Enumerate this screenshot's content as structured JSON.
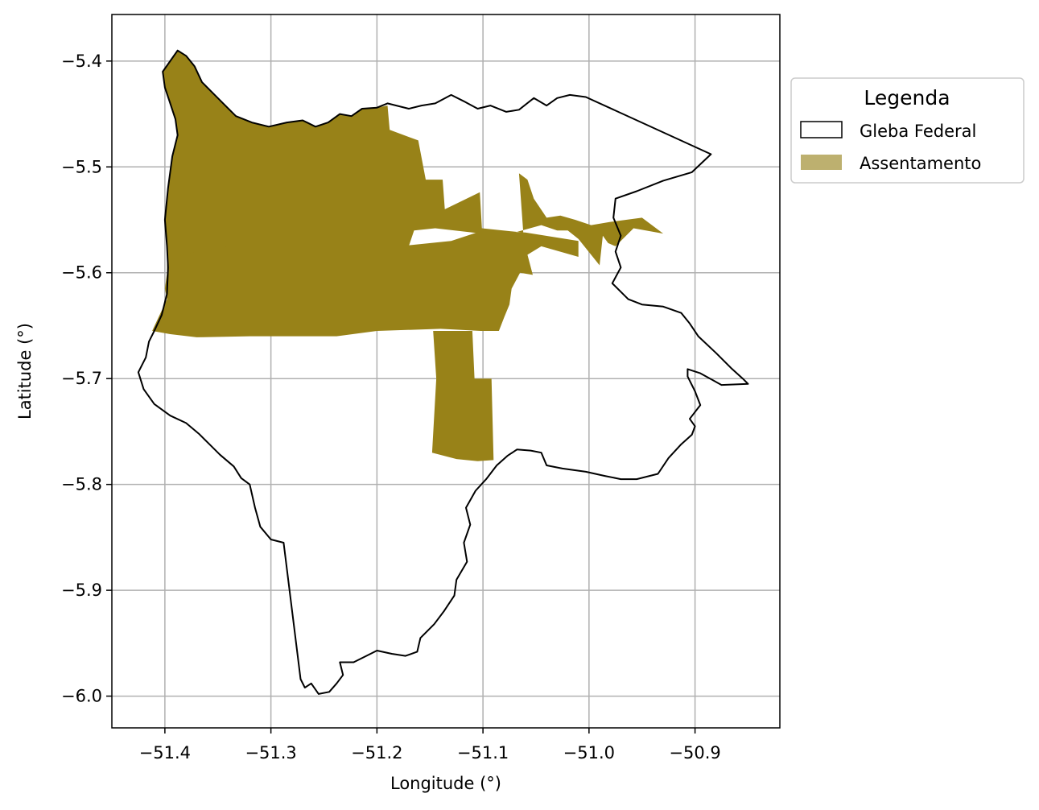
{
  "chart_data": {
    "type": "map",
    "xlabel": "Longitude (°)",
    "ylabel": "Latitude (°)",
    "xlim": [
      -51.45,
      -50.82
    ],
    "ylim": [
      -6.03,
      -5.356
    ],
    "xticks": [
      -51.4,
      -51.3,
      -51.2,
      -51.1,
      -51.0,
      -50.9
    ],
    "yticks": [
      -5.4,
      -5.5,
      -5.6,
      -5.7,
      -5.8,
      -5.9,
      -6.0
    ],
    "xtick_labels": [
      "−51.4",
      "−51.3",
      "−51.2",
      "−51.1",
      "−51.0",
      "−50.9"
    ],
    "ytick_labels": [
      "−5.4",
      "−5.5",
      "−5.6",
      "−5.7",
      "−5.8",
      "−5.9",
      "−6.0"
    ],
    "grid": true,
    "legend": {
      "title": "Legenda",
      "placement": "outside-right-top",
      "entries": [
        {
          "label": "Gleba Federal",
          "style": "outline",
          "color": "#000000"
        },
        {
          "label": "Assentamento",
          "style": "fill",
          "color": "#bdb06f"
        }
      ]
    },
    "colors": {
      "assentamento": "#988218",
      "gleba": "#000000",
      "grid": "#b0b0b0"
    },
    "gleba_federal": [
      [
        -51.402,
        -5.41
      ],
      [
        -51.388,
        -5.39
      ],
      [
        -51.38,
        -5.395
      ],
      [
        -51.372,
        -5.405
      ],
      [
        -51.365,
        -5.42
      ],
      [
        -51.355,
        -5.43
      ],
      [
        -51.345,
        -5.44
      ],
      [
        -51.333,
        -5.452
      ],
      [
        -51.318,
        -5.458
      ],
      [
        -51.302,
        -5.462
      ],
      [
        -51.285,
        -5.458
      ],
      [
        -51.27,
        -5.456
      ],
      [
        -51.258,
        -5.462
      ],
      [
        -51.246,
        -5.458
      ],
      [
        -51.235,
        -5.45
      ],
      [
        -51.224,
        -5.452
      ],
      [
        -51.214,
        -5.445
      ],
      [
        -51.2,
        -5.444
      ],
      [
        -51.19,
        -5.44
      ],
      [
        -51.17,
        -5.445
      ],
      [
        -51.158,
        -5.442
      ],
      [
        -51.145,
        -5.44
      ],
      [
        -51.13,
        -5.432
      ],
      [
        -51.118,
        -5.438
      ],
      [
        -51.105,
        -5.445
      ],
      [
        -51.093,
        -5.442
      ],
      [
        -51.078,
        -5.448
      ],
      [
        -51.066,
        -5.446
      ],
      [
        -51.052,
        -5.435
      ],
      [
        -51.04,
        -5.442
      ],
      [
        -51.03,
        -5.435
      ],
      [
        -51.018,
        -5.432
      ],
      [
        -51.003,
        -5.434
      ],
      [
        -50.885,
        -5.488
      ],
      [
        -50.903,
        -5.505
      ],
      [
        -50.93,
        -5.513
      ],
      [
        -50.955,
        -5.523
      ],
      [
        -50.975,
        -5.53
      ],
      [
        -50.977,
        -5.548
      ],
      [
        -50.97,
        -5.565
      ],
      [
        -50.975,
        -5.58
      ],
      [
        -50.97,
        -5.595
      ],
      [
        -50.978,
        -5.61
      ],
      [
        -50.963,
        -5.625
      ],
      [
        -50.95,
        -5.63
      ],
      [
        -50.93,
        -5.632
      ],
      [
        -50.913,
        -5.638
      ],
      [
        -50.905,
        -5.648
      ],
      [
        -50.897,
        -5.66
      ],
      [
        -50.88,
        -5.676
      ],
      [
        -50.866,
        -5.69
      ],
      [
        -50.855,
        -5.7
      ],
      [
        -50.85,
        -5.705
      ],
      [
        -50.875,
        -5.706
      ],
      [
        -50.895,
        -5.695
      ],
      [
        -50.907,
        -5.691
      ],
      [
        -50.907,
        -5.698
      ],
      [
        -50.9,
        -5.712
      ],
      [
        -50.895,
        -5.725
      ],
      [
        -50.905,
        -5.738
      ],
      [
        -50.9,
        -5.745
      ],
      [
        -50.903,
        -5.753
      ],
      [
        -50.913,
        -5.762
      ],
      [
        -50.925,
        -5.775
      ],
      [
        -50.935,
        -5.79
      ],
      [
        -50.955,
        -5.795
      ],
      [
        -50.97,
        -5.795
      ],
      [
        -50.985,
        -5.792
      ],
      [
        -51.003,
        -5.788
      ],
      [
        -51.025,
        -5.785
      ],
      [
        -51.04,
        -5.782
      ],
      [
        -51.045,
        -5.77
      ],
      [
        -51.055,
        -5.768
      ],
      [
        -51.068,
        -5.767
      ],
      [
        -51.077,
        -5.773
      ],
      [
        -51.087,
        -5.782
      ],
      [
        -51.097,
        -5.795
      ],
      [
        -51.107,
        -5.806
      ],
      [
        -51.116,
        -5.822
      ],
      [
        -51.112,
        -5.838
      ],
      [
        -51.118,
        -5.855
      ],
      [
        -51.115,
        -5.873
      ],
      [
        -51.125,
        -5.89
      ],
      [
        -51.127,
        -5.905
      ],
      [
        -51.137,
        -5.92
      ],
      [
        -51.146,
        -5.932
      ],
      [
        -51.159,
        -5.945
      ],
      [
        -51.162,
        -5.958
      ],
      [
        -51.173,
        -5.962
      ],
      [
        -51.186,
        -5.96
      ],
      [
        -51.2,
        -5.957
      ],
      [
        -51.21,
        -5.962
      ],
      [
        -51.222,
        -5.968
      ],
      [
        -51.235,
        -5.968
      ],
      [
        -51.232,
        -5.98
      ],
      [
        -51.238,
        -5.988
      ],
      [
        -51.245,
        -5.996
      ],
      [
        -51.255,
        -5.998
      ],
      [
        -51.262,
        -5.988
      ],
      [
        -51.268,
        -5.992
      ],
      [
        -51.272,
        -5.984
      ],
      [
        -51.288,
        -5.855
      ],
      [
        -51.3,
        -5.852
      ],
      [
        -51.31,
        -5.84
      ],
      [
        -51.315,
        -5.822
      ],
      [
        -51.32,
        -5.8
      ],
      [
        -51.328,
        -5.794
      ],
      [
        -51.335,
        -5.783
      ],
      [
        -51.348,
        -5.772
      ],
      [
        -51.358,
        -5.762
      ],
      [
        -51.368,
        -5.752
      ],
      [
        -51.38,
        -5.742
      ],
      [
        -51.395,
        -5.735
      ],
      [
        -51.41,
        -5.724
      ],
      [
        -51.42,
        -5.71
      ],
      [
        -51.425,
        -5.694
      ],
      [
        -51.418,
        -5.68
      ],
      [
        -51.415,
        -5.665
      ],
      [
        -51.41,
        -5.655
      ],
      [
        -51.403,
        -5.64
      ],
      [
        -51.398,
        -5.62
      ],
      [
        -51.397,
        -5.595
      ],
      [
        -51.398,
        -5.575
      ],
      [
        -51.4,
        -5.55
      ],
      [
        -51.397,
        -5.52
      ],
      [
        -51.393,
        -5.49
      ],
      [
        -51.388,
        -5.47
      ],
      [
        -51.39,
        -5.455
      ],
      [
        -51.395,
        -5.44
      ],
      [
        -51.4,
        -5.425
      ],
      [
        -51.402,
        -5.41
      ]
    ],
    "assentamento": [
      [
        [
          -51.388,
          -5.39
        ],
        [
          -51.38,
          -5.395
        ],
        [
          -51.372,
          -5.405
        ],
        [
          -51.365,
          -5.42
        ],
        [
          -51.355,
          -5.43
        ],
        [
          -51.345,
          -5.44
        ],
        [
          -51.333,
          -5.452
        ],
        [
          -51.318,
          -5.458
        ],
        [
          -51.302,
          -5.462
        ],
        [
          -51.285,
          -5.458
        ],
        [
          -51.27,
          -5.456
        ],
        [
          -51.258,
          -5.462
        ],
        [
          -51.246,
          -5.458
        ],
        [
          -51.235,
          -5.45
        ],
        [
          -51.224,
          -5.452
        ],
        [
          -51.214,
          -5.445
        ],
        [
          -51.2,
          -5.444
        ],
        [
          -51.19,
          -5.442
        ],
        [
          -51.188,
          -5.465
        ],
        [
          -51.161,
          -5.475
        ],
        [
          -51.154,
          -5.512
        ],
        [
          -51.138,
          -5.512
        ],
        [
          -51.136,
          -5.54
        ],
        [
          -51.103,
          -5.524
        ],
        [
          -51.101,
          -5.558
        ],
        [
          -51.062,
          -5.562
        ],
        [
          -51.066,
          -5.506
        ],
        [
          -51.058,
          -5.512
        ],
        [
          -51.052,
          -5.53
        ],
        [
          -51.04,
          -5.548
        ],
        [
          -51.027,
          -5.546
        ],
        [
          -51.013,
          -5.55
        ],
        [
          -50.998,
          -5.555
        ],
        [
          -50.98,
          -5.552
        ],
        [
          -50.95,
          -5.548
        ],
        [
          -50.93,
          -5.563
        ],
        [
          -50.958,
          -5.558
        ],
        [
          -50.975,
          -5.575
        ],
        [
          -50.982,
          -5.572
        ],
        [
          -50.987,
          -5.565
        ],
        [
          -50.99,
          -5.593
        ],
        [
          -51.01,
          -5.568
        ],
        [
          -51.02,
          -5.56
        ],
        [
          -51.03,
          -5.56
        ],
        [
          -51.045,
          -5.555
        ],
        [
          -51.07,
          -5.562
        ],
        [
          -51.085,
          -5.565
        ],
        [
          -51.11,
          -5.562
        ],
        [
          -51.145,
          -5.558
        ],
        [
          -51.165,
          -5.56
        ],
        [
          -51.17,
          -5.575
        ],
        [
          -51.185,
          -5.578
        ],
        [
          -51.2,
          -5.58
        ],
        [
          -51.245,
          -5.585
        ],
        [
          -51.275,
          -5.59
        ],
        [
          -51.31,
          -5.59
        ],
        [
          -51.34,
          -5.595
        ],
        [
          -51.37,
          -5.598
        ],
        [
          -51.39,
          -5.6
        ],
        [
          -51.398,
          -5.6
        ],
        [
          -51.398,
          -5.575
        ],
        [
          -51.4,
          -5.55
        ],
        [
          -51.397,
          -5.52
        ],
        [
          -51.393,
          -5.49
        ],
        [
          -51.388,
          -5.47
        ],
        [
          -51.39,
          -5.455
        ],
        [
          -51.395,
          -5.44
        ],
        [
          -51.4,
          -5.425
        ],
        [
          -51.402,
          -5.41
        ],
        [
          -51.395,
          -5.4
        ],
        [
          -51.388,
          -5.39
        ]
      ],
      [
        [
          -51.398,
          -5.6
        ],
        [
          -51.4,
          -5.615
        ],
        [
          -51.398,
          -5.625
        ],
        [
          -51.405,
          -5.64
        ],
        [
          -51.412,
          -5.655
        ],
        [
          -51.395,
          -5.658
        ],
        [
          -51.37,
          -5.661
        ],
        [
          -51.32,
          -5.66
        ],
        [
          -51.27,
          -5.66
        ],
        [
          -51.238,
          -5.66
        ],
        [
          -51.2,
          -5.655
        ],
        [
          -51.14,
          -5.653
        ],
        [
          -51.102,
          -5.655
        ],
        [
          -51.085,
          -5.655
        ],
        [
          -51.08,
          -5.642
        ],
        [
          -51.075,
          -5.63
        ],
        [
          -51.073,
          -5.615
        ],
        [
          -51.065,
          -5.6
        ],
        [
          -51.053,
          -5.602
        ],
        [
          -51.058,
          -5.583
        ],
        [
          -51.045,
          -5.575
        ],
        [
          -51.01,
          -5.585
        ],
        [
          -51.01,
          -5.57
        ],
        [
          -51.06,
          -5.562
        ],
        [
          -51.1,
          -5.56
        ],
        [
          -51.13,
          -5.57
        ],
        [
          -51.18,
          -5.575
        ],
        [
          -51.22,
          -5.575
        ],
        [
          -51.27,
          -5.573
        ],
        [
          -51.31,
          -5.575
        ],
        [
          -51.34,
          -5.575
        ],
        [
          -51.37,
          -5.58
        ],
        [
          -51.39,
          -5.585
        ],
        [
          -51.398,
          -5.6
        ]
      ],
      [
        [
          -51.147,
          -5.655
        ],
        [
          -51.11,
          -5.655
        ],
        [
          -51.108,
          -5.7
        ],
        [
          -51.092,
          -5.7
        ],
        [
          -51.09,
          -5.777
        ],
        [
          -51.105,
          -5.778
        ],
        [
          -51.125,
          -5.776
        ],
        [
          -51.148,
          -5.77
        ],
        [
          -51.144,
          -5.7
        ],
        [
          -51.147,
          -5.655
        ]
      ]
    ]
  }
}
